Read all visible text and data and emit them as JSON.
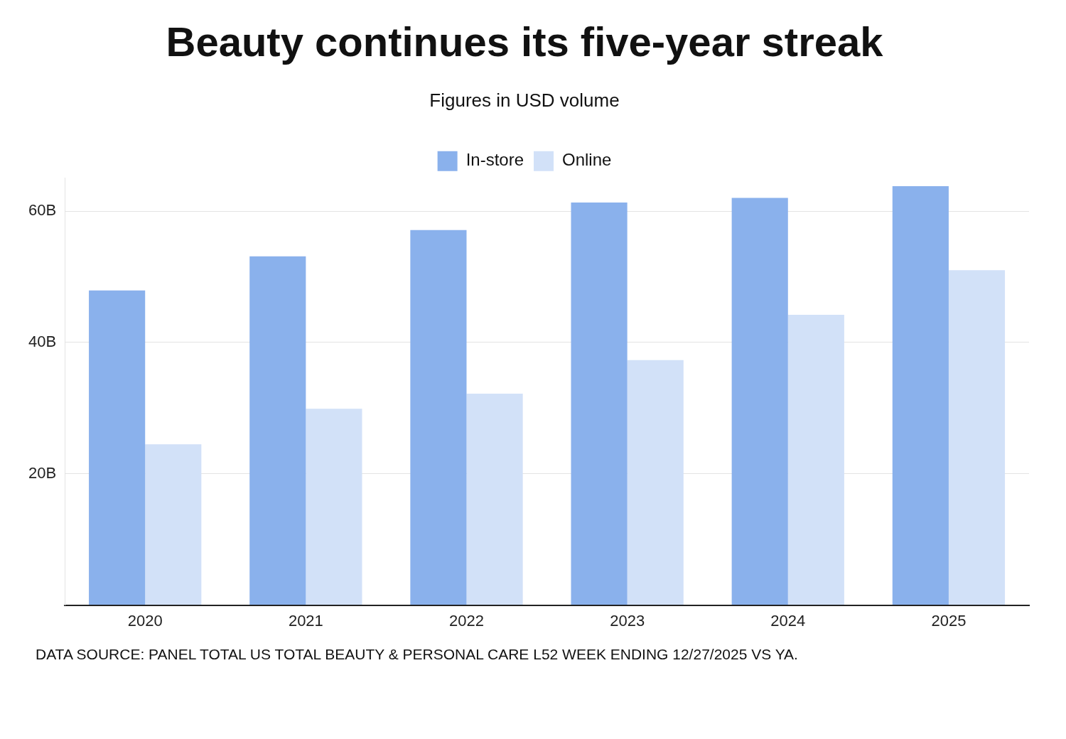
{
  "chart_data": {
    "type": "bar",
    "title": "Beauty continues its five-year streak",
    "subtitle": "Figures in USD volume",
    "categories": [
      "2020",
      "2021",
      "2022",
      "2023",
      "2024",
      "2025"
    ],
    "series": [
      {
        "name": "In-store",
        "color": "#8ab1ec",
        "values": [
          47.9,
          53.1,
          57.1,
          61.3,
          62.0,
          63.8
        ]
      },
      {
        "name": "Online",
        "color": "#d2e1f8",
        "values": [
          24.5,
          29.9,
          32.2,
          37.3,
          44.2,
          51.0
        ]
      }
    ],
    "ylim": [
      0,
      65
    ],
    "yticks": [
      {
        "value": 0,
        "label": null
      },
      {
        "value": 20,
        "label": "20B"
      },
      {
        "value": 40,
        "label": "40B"
      },
      {
        "value": 60,
        "label": "60B"
      }
    ],
    "grid": "y",
    "legend": "top",
    "annotations": [
      "DATA SOURCE: PANEL TOTAL US TOTAL BEAUTY & PERSONAL CARE L52 WEEK ENDING 12/27/2025 VS YA."
    ]
  }
}
